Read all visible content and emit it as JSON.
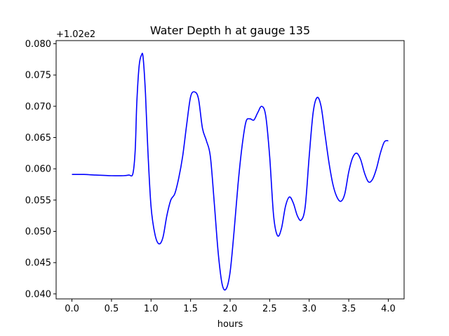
{
  "chart_data": {
    "type": "line",
    "title": "Water Depth h at gauge 135",
    "xlabel": "hours",
    "ylabel": "",
    "y_offset_label": "+1.02e2",
    "xlim": [
      -0.2,
      4.2
    ],
    "ylim": [
      0.0392,
      0.0805
    ],
    "x_ticks": [
      0.0,
      0.5,
      1.0,
      1.5,
      2.0,
      2.5,
      3.0,
      3.5,
      4.0
    ],
    "x_tick_labels": [
      "0.0",
      "0.5",
      "1.0",
      "1.5",
      "2.0",
      "2.5",
      "3.0",
      "3.5",
      "4.0"
    ],
    "y_ticks": [
      0.04,
      0.045,
      0.05,
      0.055,
      0.06,
      0.065,
      0.07,
      0.075,
      0.08
    ],
    "y_tick_labels": [
      "0.040",
      "0.045",
      "0.050",
      "0.055",
      "0.060",
      "0.065",
      "0.070",
      "0.075",
      "0.080"
    ],
    "grid": false,
    "series": [
      {
        "color": "#0000ff",
        "x": [
          0.0,
          0.15,
          0.3,
          0.5,
          0.65,
          0.72,
          0.77,
          0.8,
          0.82,
          0.85,
          0.88,
          0.9,
          0.93,
          0.96,
          1.0,
          1.05,
          1.1,
          1.15,
          1.2,
          1.25,
          1.3,
          1.35,
          1.4,
          1.45,
          1.5,
          1.55,
          1.6,
          1.65,
          1.7,
          1.75,
          1.8,
          1.85,
          1.9,
          1.95,
          2.0,
          2.05,
          2.1,
          2.15,
          2.2,
          2.25,
          2.3,
          2.35,
          2.4,
          2.45,
          2.5,
          2.55,
          2.6,
          2.65,
          2.7,
          2.75,
          2.8,
          2.85,
          2.9,
          2.95,
          3.0,
          3.05,
          3.1,
          3.15,
          3.2,
          3.25,
          3.3,
          3.35,
          3.4,
          3.45,
          3.5,
          3.55,
          3.6,
          3.65,
          3.7,
          3.75,
          3.8,
          3.85,
          3.9,
          3.95,
          4.0
        ],
        "y": [
          0.0591,
          0.0591,
          0.059,
          0.0589,
          0.0589,
          0.059,
          0.0592,
          0.063,
          0.0705,
          0.0765,
          0.0782,
          0.0778,
          0.072,
          0.063,
          0.054,
          0.0495,
          0.048,
          0.049,
          0.0525,
          0.055,
          0.056,
          0.0585,
          0.062,
          0.067,
          0.0715,
          0.0723,
          0.0712,
          0.0665,
          0.0645,
          0.062,
          0.0545,
          0.0465,
          0.0415,
          0.0408,
          0.0435,
          0.05,
          0.0575,
          0.0635,
          0.0675,
          0.068,
          0.0678,
          0.069,
          0.07,
          0.0685,
          0.062,
          0.0525,
          0.0493,
          0.0505,
          0.054,
          0.0555,
          0.0545,
          0.0525,
          0.0518,
          0.054,
          0.062,
          0.069,
          0.0714,
          0.07,
          0.0655,
          0.061,
          0.0575,
          0.0555,
          0.0548,
          0.056,
          0.0595,
          0.0618,
          0.0625,
          0.0615,
          0.0593,
          0.0579,
          0.0583,
          0.06,
          0.0625,
          0.0643,
          0.0645
        ]
      }
    ]
  }
}
